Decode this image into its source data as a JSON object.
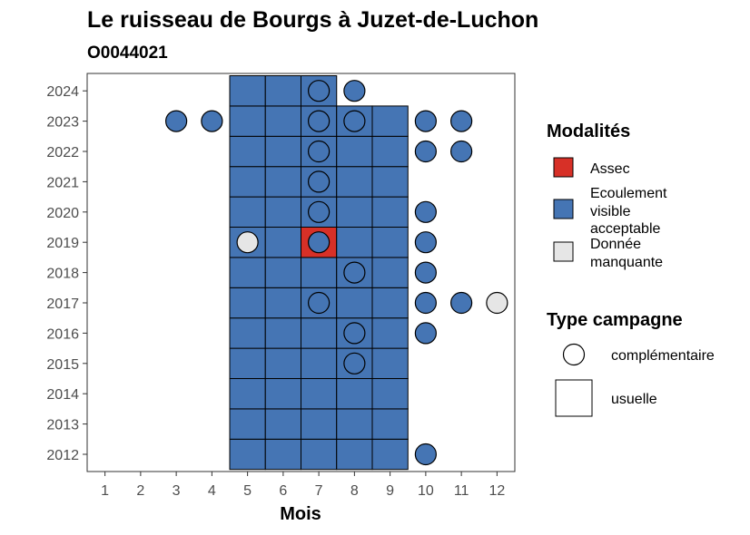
{
  "chart_data": {
    "type": "heatmap",
    "title": "Le ruisseau de Bourgs à Juzet-de-Luchon",
    "subtitle": "O0044021",
    "xlabel": "Mois",
    "ylabel": "",
    "x_categories": [
      "1",
      "2",
      "3",
      "4",
      "5",
      "6",
      "7",
      "8",
      "9",
      "10",
      "11",
      "12"
    ],
    "y_categories": [
      "2012",
      "2013",
      "2014",
      "2015",
      "2016",
      "2017",
      "2018",
      "2019",
      "2020",
      "2021",
      "2022",
      "2023",
      "2024"
    ],
    "grid": false,
    "legend_placement": "right",
    "colors": {
      "Assec": "#d73027",
      "Ecoulement visible acceptable": "#4575b4",
      "Donnée manquante": "#e6e6e6"
    },
    "legend": {
      "fill_title": "Modalités",
      "fill_items": [
        {
          "key": "Assec",
          "lines": [
            "Assec"
          ]
        },
        {
          "key": "Ecoulement visible acceptable",
          "lines": [
            "Ecoulement",
            "visible",
            "acceptable"
          ]
        },
        {
          "key": "Donnée manquante",
          "lines": [
            "Donnée",
            "manquante"
          ]
        }
      ],
      "shape_title": "Type campagne",
      "shape_items": [
        "complémentaire",
        "usuelle"
      ]
    },
    "usuelle": [
      {
        "year": 2012,
        "month": 5,
        "value": "Ecoulement visible acceptable"
      },
      {
        "year": 2012,
        "month": 6,
        "value": "Ecoulement visible acceptable"
      },
      {
        "year": 2012,
        "month": 7,
        "value": "Ecoulement visible acceptable"
      },
      {
        "year": 2012,
        "month": 8,
        "value": "Ecoulement visible acceptable"
      },
      {
        "year": 2012,
        "month": 9,
        "value": "Ecoulement visible acceptable"
      },
      {
        "year": 2013,
        "month": 5,
        "value": "Ecoulement visible acceptable"
      },
      {
        "year": 2013,
        "month": 6,
        "value": "Ecoulement visible acceptable"
      },
      {
        "year": 2013,
        "month": 7,
        "value": "Ecoulement visible acceptable"
      },
      {
        "year": 2013,
        "month": 8,
        "value": "Ecoulement visible acceptable"
      },
      {
        "year": 2013,
        "month": 9,
        "value": "Ecoulement visible acceptable"
      },
      {
        "year": 2014,
        "month": 5,
        "value": "Ecoulement visible acceptable"
      },
      {
        "year": 2014,
        "month": 6,
        "value": "Ecoulement visible acceptable"
      },
      {
        "year": 2014,
        "month": 7,
        "value": "Ecoulement visible acceptable"
      },
      {
        "year": 2014,
        "month": 8,
        "value": "Ecoulement visible acceptable"
      },
      {
        "year": 2014,
        "month": 9,
        "value": "Ecoulement visible acceptable"
      },
      {
        "year": 2015,
        "month": 5,
        "value": "Ecoulement visible acceptable"
      },
      {
        "year": 2015,
        "month": 6,
        "value": "Ecoulement visible acceptable"
      },
      {
        "year": 2015,
        "month": 7,
        "value": "Ecoulement visible acceptable"
      },
      {
        "year": 2015,
        "month": 8,
        "value": "Ecoulement visible acceptable"
      },
      {
        "year": 2015,
        "month": 9,
        "value": "Ecoulement visible acceptable"
      },
      {
        "year": 2016,
        "month": 5,
        "value": "Ecoulement visible acceptable"
      },
      {
        "year": 2016,
        "month": 6,
        "value": "Ecoulement visible acceptable"
      },
      {
        "year": 2016,
        "month": 7,
        "value": "Ecoulement visible acceptable"
      },
      {
        "year": 2016,
        "month": 8,
        "value": "Ecoulement visible acceptable"
      },
      {
        "year": 2016,
        "month": 9,
        "value": "Ecoulement visible acceptable"
      },
      {
        "year": 2017,
        "month": 5,
        "value": "Ecoulement visible acceptable"
      },
      {
        "year": 2017,
        "month": 6,
        "value": "Ecoulement visible acceptable"
      },
      {
        "year": 2017,
        "month": 7,
        "value": "Ecoulement visible acceptable"
      },
      {
        "year": 2017,
        "month": 8,
        "value": "Ecoulement visible acceptable"
      },
      {
        "year": 2017,
        "month": 9,
        "value": "Ecoulement visible acceptable"
      },
      {
        "year": 2018,
        "month": 5,
        "value": "Ecoulement visible acceptable"
      },
      {
        "year": 2018,
        "month": 6,
        "value": "Ecoulement visible acceptable"
      },
      {
        "year": 2018,
        "month": 7,
        "value": "Ecoulement visible acceptable"
      },
      {
        "year": 2018,
        "month": 8,
        "value": "Ecoulement visible acceptable"
      },
      {
        "year": 2018,
        "month": 9,
        "value": "Ecoulement visible acceptable"
      },
      {
        "year": 2019,
        "month": 5,
        "value": "Ecoulement visible acceptable"
      },
      {
        "year": 2019,
        "month": 6,
        "value": "Ecoulement visible acceptable"
      },
      {
        "year": 2019,
        "month": 7,
        "value": "Assec"
      },
      {
        "year": 2019,
        "month": 8,
        "value": "Ecoulement visible acceptable"
      },
      {
        "year": 2019,
        "month": 9,
        "value": "Ecoulement visible acceptable"
      },
      {
        "year": 2020,
        "month": 5,
        "value": "Ecoulement visible acceptable"
      },
      {
        "year": 2020,
        "month": 6,
        "value": "Ecoulement visible acceptable"
      },
      {
        "year": 2020,
        "month": 7,
        "value": "Ecoulement visible acceptable"
      },
      {
        "year": 2020,
        "month": 8,
        "value": "Ecoulement visible acceptable"
      },
      {
        "year": 2020,
        "month": 9,
        "value": "Ecoulement visible acceptable"
      },
      {
        "year": 2021,
        "month": 5,
        "value": "Ecoulement visible acceptable"
      },
      {
        "year": 2021,
        "month": 6,
        "value": "Ecoulement visible acceptable"
      },
      {
        "year": 2021,
        "month": 7,
        "value": "Ecoulement visible acceptable"
      },
      {
        "year": 2021,
        "month": 8,
        "value": "Ecoulement visible acceptable"
      },
      {
        "year": 2021,
        "month": 9,
        "value": "Ecoulement visible acceptable"
      },
      {
        "year": 2022,
        "month": 5,
        "value": "Ecoulement visible acceptable"
      },
      {
        "year": 2022,
        "month": 6,
        "value": "Ecoulement visible acceptable"
      },
      {
        "year": 2022,
        "month": 7,
        "value": "Ecoulement visible acceptable"
      },
      {
        "year": 2022,
        "month": 8,
        "value": "Ecoulement visible acceptable"
      },
      {
        "year": 2022,
        "month": 9,
        "value": "Ecoulement visible acceptable"
      },
      {
        "year": 2023,
        "month": 5,
        "value": "Ecoulement visible acceptable"
      },
      {
        "year": 2023,
        "month": 6,
        "value": "Ecoulement visible acceptable"
      },
      {
        "year": 2023,
        "month": 7,
        "value": "Ecoulement visible acceptable"
      },
      {
        "year": 2023,
        "month": 8,
        "value": "Ecoulement visible acceptable"
      },
      {
        "year": 2023,
        "month": 9,
        "value": "Ecoulement visible acceptable"
      },
      {
        "year": 2024,
        "month": 5,
        "value": "Ecoulement visible acceptable"
      },
      {
        "year": 2024,
        "month": 6,
        "value": "Ecoulement visible acceptable"
      },
      {
        "year": 2024,
        "month": 7,
        "value": "Ecoulement visible acceptable"
      }
    ],
    "complementaire": [
      {
        "year": 2024,
        "month": 7,
        "value": "Ecoulement visible acceptable"
      },
      {
        "year": 2024,
        "month": 8,
        "value": "Ecoulement visible acceptable"
      },
      {
        "year": 2023,
        "month": 3,
        "value": "Ecoulement visible acceptable"
      },
      {
        "year": 2023,
        "month": 4,
        "value": "Ecoulement visible acceptable"
      },
      {
        "year": 2023,
        "month": 7,
        "value": "Ecoulement visible acceptable"
      },
      {
        "year": 2023,
        "month": 8,
        "value": "Ecoulement visible acceptable"
      },
      {
        "year": 2023,
        "month": 10,
        "value": "Ecoulement visible acceptable"
      },
      {
        "year": 2023,
        "month": 11,
        "value": "Ecoulement visible acceptable"
      },
      {
        "year": 2022,
        "month": 7,
        "value": "Ecoulement visible acceptable"
      },
      {
        "year": 2022,
        "month": 10,
        "value": "Ecoulement visible acceptable"
      },
      {
        "year": 2022,
        "month": 11,
        "value": "Ecoulement visible acceptable"
      },
      {
        "year": 2021,
        "month": 7,
        "value": "Ecoulement visible acceptable"
      },
      {
        "year": 2020,
        "month": 7,
        "value": "Ecoulement visible acceptable"
      },
      {
        "year": 2020,
        "month": 10,
        "value": "Ecoulement visible acceptable"
      },
      {
        "year": 2019,
        "month": 5,
        "value": "Donnée manquante"
      },
      {
        "year": 2019,
        "month": 7,
        "value": "Ecoulement visible acceptable"
      },
      {
        "year": 2019,
        "month": 10,
        "value": "Ecoulement visible acceptable"
      },
      {
        "year": 2018,
        "month": 8,
        "value": "Ecoulement visible acceptable"
      },
      {
        "year": 2018,
        "month": 10,
        "value": "Ecoulement visible acceptable"
      },
      {
        "year": 2017,
        "month": 7,
        "value": "Ecoulement visible acceptable"
      },
      {
        "year": 2017,
        "month": 10,
        "value": "Ecoulement visible acceptable"
      },
      {
        "year": 2017,
        "month": 11,
        "value": "Ecoulement visible acceptable"
      },
      {
        "year": 2017,
        "month": 12,
        "value": "Donnée manquante"
      },
      {
        "year": 2016,
        "month": 8,
        "value": "Ecoulement visible acceptable"
      },
      {
        "year": 2016,
        "month": 10,
        "value": "Ecoulement visible acceptable"
      },
      {
        "year": 2015,
        "month": 8,
        "value": "Ecoulement visible acceptable"
      },
      {
        "year": 2012,
        "month": 10,
        "value": "Ecoulement visible acceptable"
      }
    ]
  }
}
